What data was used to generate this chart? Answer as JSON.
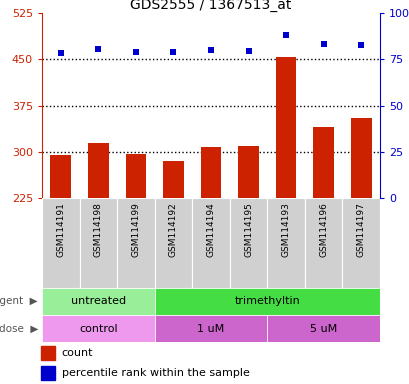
{
  "title": "GDS2555 / 1367513_at",
  "samples": [
    "GSM114191",
    "GSM114198",
    "GSM114199",
    "GSM114192",
    "GSM114194",
    "GSM114195",
    "GSM114193",
    "GSM114196",
    "GSM114197"
  ],
  "bar_values": [
    295,
    315,
    297,
    285,
    308,
    310,
    453,
    340,
    355
  ],
  "dot_values": [
    78.5,
    80.5,
    79.0,
    79.0,
    80.0,
    79.5,
    88.0,
    83.0,
    82.5
  ],
  "left_ylim": [
    225,
    525
  ],
  "right_ylim": [
    0,
    100
  ],
  "left_yticks": [
    225,
    300,
    375,
    450,
    525
  ],
  "right_yticks": [
    0,
    25,
    50,
    75,
    100
  ],
  "right_yticklabels": [
    "0",
    "25",
    "50",
    "75",
    "100%"
  ],
  "hline_values": [
    300,
    375,
    450
  ],
  "bar_color": "#cc2200",
  "dot_color": "#0000cc",
  "agent_groups": [
    {
      "label": "untreated",
      "start": 0,
      "end": 3,
      "color": "#99ee99"
    },
    {
      "label": "trimethyltin",
      "start": 3,
      "end": 9,
      "color": "#44dd44"
    }
  ],
  "dose_groups": [
    {
      "label": "control",
      "start": 0,
      "end": 3,
      "color": "#ee99ee"
    },
    {
      "label": "1 uM",
      "start": 3,
      "end": 6,
      "color": "#cc66cc"
    },
    {
      "label": "5 uM",
      "start": 6,
      "end": 9,
      "color": "#cc66cc"
    }
  ],
  "xlabel_color_left": "#cc2200",
  "xlabel_color_right": "#0000cc",
  "bar_color_legend": "#cc2200",
  "dot_color_legend": "#0000cc",
  "bar_width": 0.55,
  "fig_width": 4.1,
  "fig_height": 3.84,
  "dpi": 100
}
